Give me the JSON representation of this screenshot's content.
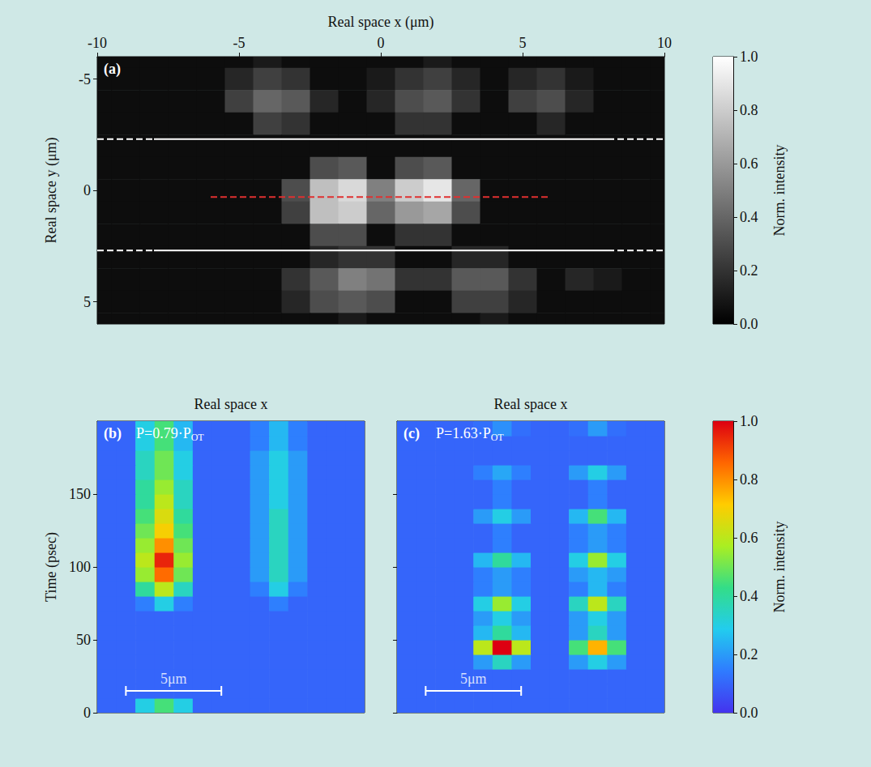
{
  "chart_data": [
    {
      "type": "heatmap",
      "panel": "(a)",
      "x_label": "Real space x (μm)",
      "y_label": "Real space y (μm)",
      "x": [
        -10,
        -9,
        -8,
        -7,
        -6,
        -5,
        -4,
        -3,
        -2,
        -1,
        0,
        1,
        2,
        3,
        4,
        5,
        6,
        7,
        8,
        9,
        10
      ],
      "y": [
        -6,
        -5,
        -4,
        -3,
        -2,
        -1,
        0,
        1,
        2,
        3,
        4,
        5,
        6
      ],
      "cells": [
        [
          0.05,
          0.05,
          0.05,
          0.05,
          0.05,
          0.05,
          0.1,
          0.05,
          0.05,
          0.05,
          0.05,
          0.05,
          0.1,
          0.05,
          0.05,
          0.05,
          0.05,
          0.05,
          0.05,
          0.05,
          0.05
        ],
        [
          0.05,
          0.05,
          0.05,
          0.05,
          0.05,
          0.15,
          0.25,
          0.2,
          0.05,
          0.05,
          0.1,
          0.2,
          0.25,
          0.15,
          0.05,
          0.15,
          0.2,
          0.1,
          0.05,
          0.05,
          0.05
        ],
        [
          0.05,
          0.05,
          0.05,
          0.05,
          0.05,
          0.25,
          0.4,
          0.35,
          0.15,
          0.05,
          0.15,
          0.3,
          0.35,
          0.2,
          0.05,
          0.25,
          0.3,
          0.15,
          0.05,
          0.05,
          0.05
        ],
        [
          0.05,
          0.05,
          0.05,
          0.05,
          0.05,
          0.05,
          0.25,
          0.2,
          0.05,
          0.05,
          0.05,
          0.2,
          0.2,
          0.05,
          0.05,
          0.05,
          0.15,
          0.05,
          0.05,
          0.05,
          0.05
        ],
        [
          0.05,
          0.05,
          0.05,
          0.05,
          0.05,
          0.05,
          0.05,
          0.05,
          0.05,
          0.05,
          0.05,
          0.05,
          0.05,
          0.05,
          0.05,
          0.05,
          0.05,
          0.05,
          0.05,
          0.05,
          0.05
        ],
        [
          0.05,
          0.05,
          0.05,
          0.05,
          0.05,
          0.05,
          0.05,
          0.05,
          0.3,
          0.35,
          0.05,
          0.3,
          0.35,
          0.05,
          0.05,
          0.05,
          0.05,
          0.05,
          0.05,
          0.05,
          0.05
        ],
        [
          0.05,
          0.05,
          0.05,
          0.05,
          0.05,
          0.05,
          0.05,
          0.3,
          0.75,
          0.85,
          0.5,
          0.8,
          0.9,
          0.4,
          0.05,
          0.05,
          0.05,
          0.05,
          0.05,
          0.05,
          0.05
        ],
        [
          0.05,
          0.05,
          0.05,
          0.05,
          0.05,
          0.05,
          0.05,
          0.25,
          0.75,
          0.8,
          0.4,
          0.6,
          0.65,
          0.3,
          0.05,
          0.05,
          0.05,
          0.05,
          0.05,
          0.05,
          0.05
        ],
        [
          0.05,
          0.05,
          0.05,
          0.05,
          0.05,
          0.05,
          0.05,
          0.05,
          0.3,
          0.3,
          0.05,
          0.2,
          0.2,
          0.05,
          0.05,
          0.05,
          0.05,
          0.05,
          0.05,
          0.05,
          0.05
        ],
        [
          0.05,
          0.05,
          0.05,
          0.05,
          0.05,
          0.05,
          0.05,
          0.05,
          0.15,
          0.2,
          0.2,
          0.05,
          0.05,
          0.15,
          0.15,
          0.05,
          0.05,
          0.05,
          0.05,
          0.05,
          0.05
        ],
        [
          0.05,
          0.05,
          0.05,
          0.05,
          0.05,
          0.05,
          0.05,
          0.2,
          0.35,
          0.5,
          0.45,
          0.2,
          0.2,
          0.35,
          0.35,
          0.2,
          0.05,
          0.15,
          0.1,
          0.05,
          0.05
        ],
        [
          0.05,
          0.05,
          0.05,
          0.05,
          0.05,
          0.05,
          0.05,
          0.15,
          0.3,
          0.35,
          0.3,
          0.05,
          0.05,
          0.25,
          0.25,
          0.15,
          0.05,
          0.05,
          0.05,
          0.05,
          0.05
        ],
        [
          0.05,
          0.05,
          0.05,
          0.05,
          0.05,
          0.05,
          0.05,
          0.05,
          0.05,
          0.1,
          0.05,
          0.05,
          0.05,
          0.05,
          0.1,
          0.05,
          0.05,
          0.05,
          0.05,
          0.05,
          0.05
        ]
      ],
      "xlim": [
        -10,
        10
      ],
      "ylim": [
        -6,
        6
      ],
      "xticks": [
        -10,
        -5,
        0,
        5,
        10
      ],
      "yticks": [
        -5,
        0,
        5
      ],
      "lines": [
        {
          "x": [
            -8,
            8
          ],
          "y": [
            -2.3,
            -2.3
          ],
          "color": "#ffffff",
          "line_style": "solid"
        },
        {
          "x": [
            -10,
            -8
          ],
          "y": [
            -2.3,
            -2.3
          ],
          "color": "#ffffff",
          "line_style": "dashed"
        },
        {
          "x": [
            8,
            10
          ],
          "y": [
            -2.3,
            -2.3
          ],
          "color": "#ffffff",
          "line_style": "dashed"
        },
        {
          "x": [
            -8,
            8
          ],
          "y": [
            2.7,
            2.7
          ],
          "color": "#ffffff",
          "line_style": "solid"
        },
        {
          "x": [
            -10,
            -8
          ],
          "y": [
            2.7,
            2.7
          ],
          "color": "#ffffff",
          "line_style": "dashed"
        },
        {
          "x": [
            8,
            10
          ],
          "y": [
            2.7,
            2.7
          ],
          "color": "#ffffff",
          "line_style": "dashed"
        },
        {
          "x": [
            -6,
            6
          ],
          "y": [
            0.3,
            0.3
          ],
          "color": "#e03030",
          "line_style": "dashed"
        }
      ],
      "colorbar": {
        "label": "Norm. intensity",
        "range": [
          0,
          1
        ],
        "ticks": [
          {
            "value": 0,
            "label": "0.0"
          },
          {
            "value": 0.2,
            "label": "0.2"
          },
          {
            "value": 0.4,
            "label": "0.4"
          },
          {
            "value": 0.6,
            "label": "0.6"
          },
          {
            "value": 0.8,
            "label": "0.8"
          },
          {
            "value": 1,
            "label": "1.0"
          }
        ],
        "colors": [
          "#000000",
          "#ffffff"
        ]
      }
    },
    {
      "type": "heatmap",
      "panel": "(b)",
      "annotation": {
        "text": "P=0.79·P",
        "subscript": "OT"
      },
      "x_label": "Real space x",
      "y_label": "Time (psec)",
      "x": [
        -6.5,
        -5.5,
        -4.5,
        -3.5,
        -2.5,
        -1.5,
        -0.5,
        0.5,
        1.5,
        2.5,
        3.5,
        4.5,
        5.5,
        6.5
      ],
      "y": [
        5,
        15,
        25,
        35,
        45,
        55,
        65,
        75,
        85,
        95,
        105,
        115,
        125,
        135,
        145,
        155,
        165,
        175,
        185,
        195
      ],
      "cells": [
        [
          0.1,
          0.1,
          0.3,
          0.45,
          0.3,
          0.1,
          0.1,
          0.1,
          0.1,
          0.1,
          0.1,
          0.1,
          0.1,
          0.1
        ],
        [
          0.1,
          0.1,
          0.1,
          0.1,
          0.1,
          0.1,
          0.1,
          0.1,
          0.1,
          0.1,
          0.1,
          0.1,
          0.1,
          0.1
        ],
        [
          0.1,
          0.1,
          0.1,
          0.1,
          0.1,
          0.1,
          0.1,
          0.1,
          0.1,
          0.1,
          0.1,
          0.1,
          0.1,
          0.1
        ],
        [
          0.1,
          0.1,
          0.1,
          0.1,
          0.1,
          0.1,
          0.1,
          0.1,
          0.1,
          0.1,
          0.1,
          0.1,
          0.1,
          0.1
        ],
        [
          0.1,
          0.1,
          0.1,
          0.1,
          0.1,
          0.1,
          0.1,
          0.1,
          0.1,
          0.1,
          0.1,
          0.1,
          0.1,
          0.1
        ],
        [
          0.1,
          0.1,
          0.1,
          0.1,
          0.1,
          0.1,
          0.1,
          0.1,
          0.1,
          0.1,
          0.1,
          0.1,
          0.1,
          0.1
        ],
        [
          0.1,
          0.1,
          0.1,
          0.1,
          0.1,
          0.1,
          0.1,
          0.1,
          0.1,
          0.1,
          0.1,
          0.1,
          0.1,
          0.1
        ],
        [
          0.1,
          0.1,
          0.15,
          0.3,
          0.15,
          0.1,
          0.1,
          0.1,
          0.1,
          0.15,
          0.1,
          0.1,
          0.1,
          0.1
        ],
        [
          0.1,
          0.1,
          0.4,
          0.6,
          0.35,
          0.1,
          0.1,
          0.1,
          0.15,
          0.3,
          0.15,
          0.1,
          0.1,
          0.1
        ],
        [
          0.1,
          0.1,
          0.55,
          0.85,
          0.5,
          0.1,
          0.1,
          0.1,
          0.2,
          0.35,
          0.2,
          0.1,
          0.1,
          0.1
        ],
        [
          0.1,
          0.1,
          0.6,
          0.95,
          0.55,
          0.1,
          0.1,
          0.1,
          0.2,
          0.35,
          0.2,
          0.1,
          0.1,
          0.1
        ],
        [
          0.1,
          0.1,
          0.55,
          0.8,
          0.5,
          0.1,
          0.1,
          0.1,
          0.2,
          0.35,
          0.2,
          0.1,
          0.1,
          0.1
        ],
        [
          0.1,
          0.1,
          0.5,
          0.7,
          0.45,
          0.1,
          0.1,
          0.1,
          0.2,
          0.35,
          0.2,
          0.1,
          0.1,
          0.1
        ],
        [
          0.1,
          0.1,
          0.45,
          0.65,
          0.4,
          0.1,
          0.1,
          0.1,
          0.2,
          0.35,
          0.2,
          0.1,
          0.1,
          0.1
        ],
        [
          0.1,
          0.1,
          0.4,
          0.6,
          0.35,
          0.1,
          0.1,
          0.1,
          0.2,
          0.3,
          0.2,
          0.1,
          0.1,
          0.1
        ],
        [
          0.1,
          0.1,
          0.4,
          0.55,
          0.35,
          0.1,
          0.1,
          0.1,
          0.2,
          0.3,
          0.2,
          0.1,
          0.1,
          0.1
        ],
        [
          0.1,
          0.1,
          0.35,
          0.5,
          0.3,
          0.1,
          0.1,
          0.1,
          0.2,
          0.3,
          0.2,
          0.1,
          0.1,
          0.1
        ],
        [
          0.1,
          0.1,
          0.35,
          0.5,
          0.3,
          0.1,
          0.1,
          0.1,
          0.2,
          0.3,
          0.2,
          0.1,
          0.1,
          0.1
        ],
        [
          0.1,
          0.1,
          0.3,
          0.45,
          0.25,
          0.1,
          0.1,
          0.1,
          0.15,
          0.25,
          0.15,
          0.1,
          0.1,
          0.1
        ],
        [
          0.1,
          0.1,
          0.3,
          0.45,
          0.25,
          0.1,
          0.1,
          0.1,
          0.15,
          0.25,
          0.15,
          0.1,
          0.1,
          0.1
        ]
      ],
      "xlim": [
        -7,
        7
      ],
      "ylim": [
        0,
        200
      ],
      "xticks": [],
      "yticks": [
        0,
        50,
        100,
        150
      ],
      "tick_labels": "y",
      "scale_bar": {
        "x": [
          -5.5,
          -0.5
        ],
        "y": 15,
        "label": "5μm"
      }
    },
    {
      "type": "heatmap",
      "panel": "(c)",
      "annotation": {
        "text": "P=1.63·P",
        "subscript": "OT"
      },
      "x_label": "Real space x",
      "x": [
        -6.5,
        -5.5,
        -4.5,
        -3.5,
        -2.5,
        -1.5,
        -0.5,
        0.5,
        1.5,
        2.5,
        3.5,
        4.5,
        5.5,
        6.5
      ],
      "y": [
        5,
        15,
        25,
        35,
        45,
        55,
        65,
        75,
        85,
        95,
        105,
        115,
        125,
        135,
        145,
        155,
        165,
        175,
        185,
        195
      ],
      "cells": [
        [
          0.1,
          0.1,
          0.1,
          0.1,
          0.1,
          0.1,
          0.1,
          0.1,
          0.1,
          0.1,
          0.1,
          0.1,
          0.1,
          0.1
        ],
        [
          0.1,
          0.1,
          0.1,
          0.1,
          0.1,
          0.1,
          0.1,
          0.1,
          0.1,
          0.1,
          0.1,
          0.1,
          0.1,
          0.1
        ],
        [
          0.1,
          0.1,
          0.1,
          0.1,
          0.1,
          0.1,
          0.1,
          0.1,
          0.1,
          0.1,
          0.1,
          0.1,
          0.1,
          0.1
        ],
        [
          0.1,
          0.1,
          0.1,
          0.1,
          0.2,
          0.35,
          0.2,
          0.1,
          0.1,
          0.2,
          0.3,
          0.2,
          0.1,
          0.1
        ],
        [
          0.1,
          0.1,
          0.1,
          0.1,
          0.6,
          1.0,
          0.6,
          0.1,
          0.1,
          0.45,
          0.75,
          0.45,
          0.1,
          0.1
        ],
        [
          0.1,
          0.1,
          0.1,
          0.1,
          0.25,
          0.4,
          0.25,
          0.1,
          0.1,
          0.2,
          0.35,
          0.2,
          0.1,
          0.1
        ],
        [
          0.1,
          0.1,
          0.1,
          0.1,
          0.2,
          0.3,
          0.2,
          0.1,
          0.1,
          0.2,
          0.3,
          0.2,
          0.1,
          0.1
        ],
        [
          0.1,
          0.1,
          0.1,
          0.1,
          0.3,
          0.55,
          0.3,
          0.1,
          0.1,
          0.35,
          0.6,
          0.35,
          0.1,
          0.1
        ],
        [
          0.1,
          0.1,
          0.1,
          0.1,
          0.15,
          0.2,
          0.15,
          0.1,
          0.1,
          0.15,
          0.25,
          0.15,
          0.1,
          0.1
        ],
        [
          0.1,
          0.1,
          0.1,
          0.1,
          0.15,
          0.2,
          0.15,
          0.1,
          0.1,
          0.2,
          0.25,
          0.2,
          0.1,
          0.1
        ],
        [
          0.1,
          0.1,
          0.1,
          0.1,
          0.25,
          0.4,
          0.25,
          0.1,
          0.1,
          0.3,
          0.55,
          0.3,
          0.1,
          0.1
        ],
        [
          0.1,
          0.1,
          0.1,
          0.1,
          0.1,
          0.15,
          0.1,
          0.1,
          0.1,
          0.15,
          0.2,
          0.15,
          0.1,
          0.1
        ],
        [
          0.1,
          0.1,
          0.1,
          0.1,
          0.1,
          0.15,
          0.1,
          0.1,
          0.1,
          0.15,
          0.2,
          0.15,
          0.1,
          0.1
        ],
        [
          0.1,
          0.1,
          0.1,
          0.1,
          0.2,
          0.3,
          0.2,
          0.1,
          0.1,
          0.25,
          0.45,
          0.25,
          0.1,
          0.1
        ],
        [
          0.1,
          0.1,
          0.1,
          0.1,
          0.1,
          0.15,
          0.1,
          0.1,
          0.1,
          0.1,
          0.15,
          0.1,
          0.1,
          0.1
        ],
        [
          0.1,
          0.1,
          0.1,
          0.1,
          0.1,
          0.15,
          0.1,
          0.1,
          0.1,
          0.1,
          0.15,
          0.1,
          0.1,
          0.1
        ],
        [
          0.1,
          0.1,
          0.1,
          0.1,
          0.15,
          0.22,
          0.15,
          0.1,
          0.1,
          0.2,
          0.3,
          0.2,
          0.1,
          0.1
        ],
        [
          0.1,
          0.1,
          0.1,
          0.1,
          0.1,
          0.1,
          0.1,
          0.1,
          0.1,
          0.1,
          0.1,
          0.1,
          0.1,
          0.1
        ],
        [
          0.1,
          0.1,
          0.1,
          0.1,
          0.1,
          0.1,
          0.1,
          0.1,
          0.1,
          0.1,
          0.1,
          0.1,
          0.1,
          0.1
        ],
        [
          0.1,
          0.1,
          0.1,
          0.1,
          0.12,
          0.18,
          0.12,
          0.1,
          0.1,
          0.12,
          0.2,
          0.12,
          0.1,
          0.1
        ]
      ],
      "xlim": [
        -7,
        7
      ],
      "ylim": [
        0,
        200
      ],
      "xticks": [],
      "yticks": [
        0,
        50,
        100,
        150
      ],
      "tick_labels": false,
      "scale_bar": {
        "x": [
          -5.5,
          -0.5
        ],
        "y": 15,
        "label": "5μm"
      },
      "colorbar": {
        "label": "Norm. intensity",
        "range": [
          0,
          1
        ],
        "ticks": [
          {
            "value": 0,
            "label": "0.0"
          },
          {
            "value": 0.2,
            "label": "0.2"
          },
          {
            "value": 0.4,
            "label": "0.4"
          },
          {
            "value": 0.6,
            "label": "0.6"
          },
          {
            "value": 0.8,
            "label": "0.8"
          },
          {
            "value": 1,
            "label": "1.0"
          }
        ],
        "colors": [
          "#4433ee",
          "#2f7bff",
          "#22ccee",
          "#33dd88",
          "#aaee22",
          "#ffcc00",
          "#ff6600",
          "#dd0011"
        ]
      }
    }
  ]
}
